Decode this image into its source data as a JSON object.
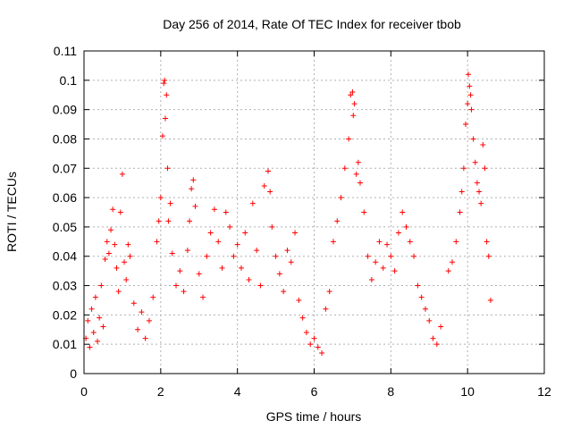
{
  "chart_data": {
    "type": "scatter",
    "title": "Day 256 of 2014, Rate Of TEC Index for receiver tbob",
    "xlabel": "GPS time / hours",
    "ylabel": "ROTI / TECUs",
    "xlim": [
      0,
      12
    ],
    "ylim": [
      0,
      0.11
    ],
    "x_ticks": [
      "0",
      "2",
      "4",
      "6",
      "8",
      "10",
      "12"
    ],
    "y_ticks": [
      "0",
      "0.01",
      "0.02",
      "0.03",
      "0.04",
      "0.05",
      "0.06",
      "0.07",
      "0.08",
      "0.09",
      "0.1",
      "0.11"
    ],
    "grid": true,
    "marker": "+",
    "series": [
      {
        "name": "ROTI",
        "color": "#ff0000",
        "points": [
          [
            0.05,
            0.012
          ],
          [
            0.1,
            0.018
          ],
          [
            0.15,
            0.009
          ],
          [
            0.2,
            0.022
          ],
          [
            0.25,
            0.014
          ],
          [
            0.3,
            0.026
          ],
          [
            0.35,
            0.011
          ],
          [
            0.4,
            0.019
          ],
          [
            0.45,
            0.03
          ],
          [
            0.5,
            0.016
          ],
          [
            0.55,
            0.039
          ],
          [
            0.6,
            0.045
          ],
          [
            0.65,
            0.041
          ],
          [
            0.7,
            0.049
          ],
          [
            0.75,
            0.056
          ],
          [
            0.8,
            0.044
          ],
          [
            0.85,
            0.036
          ],
          [
            0.9,
            0.028
          ],
          [
            0.95,
            0.055
          ],
          [
            1.0,
            0.068
          ],
          [
            1.05,
            0.038
          ],
          [
            1.1,
            0.032
          ],
          [
            1.15,
            0.044
          ],
          [
            1.2,
            0.04
          ],
          [
            1.3,
            0.024
          ],
          [
            1.4,
            0.015
          ],
          [
            1.5,
            0.021
          ],
          [
            1.6,
            0.012
          ],
          [
            1.7,
            0.018
          ],
          [
            1.8,
            0.026
          ],
          [
            1.9,
            0.045
          ],
          [
            1.95,
            0.052
          ],
          [
            2.0,
            0.06
          ],
          [
            2.05,
            0.081
          ],
          [
            2.08,
            0.099
          ],
          [
            2.1,
            0.1
          ],
          [
            2.12,
            0.087
          ],
          [
            2.15,
            0.095
          ],
          [
            2.18,
            0.07
          ],
          [
            2.2,
            0.052
          ],
          [
            2.25,
            0.058
          ],
          [
            2.3,
            0.041
          ],
          [
            2.4,
            0.03
          ],
          [
            2.5,
            0.035
          ],
          [
            2.6,
            0.028
          ],
          [
            2.7,
            0.042
          ],
          [
            2.75,
            0.052
          ],
          [
            2.8,
            0.063
          ],
          [
            2.85,
            0.066
          ],
          [
            2.9,
            0.057
          ],
          [
            3.0,
            0.034
          ],
          [
            3.1,
            0.026
          ],
          [
            3.2,
            0.04
          ],
          [
            3.3,
            0.048
          ],
          [
            3.4,
            0.056
          ],
          [
            3.5,
            0.045
          ],
          [
            3.6,
            0.036
          ],
          [
            3.7,
            0.055
          ],
          [
            3.8,
            0.05
          ],
          [
            3.9,
            0.04
          ],
          [
            4.0,
            0.044
          ],
          [
            4.1,
            0.036
          ],
          [
            4.2,
            0.048
          ],
          [
            4.3,
            0.032
          ],
          [
            4.4,
            0.058
          ],
          [
            4.5,
            0.042
          ],
          [
            4.6,
            0.03
          ],
          [
            4.7,
            0.064
          ],
          [
            4.8,
            0.069
          ],
          [
            4.85,
            0.062
          ],
          [
            4.9,
            0.05
          ],
          [
            5.0,
            0.04
          ],
          [
            5.1,
            0.034
          ],
          [
            5.2,
            0.028
          ],
          [
            5.3,
            0.042
          ],
          [
            5.4,
            0.038
          ],
          [
            5.5,
            0.048
          ],
          [
            5.6,
            0.025
          ],
          [
            5.7,
            0.019
          ],
          [
            5.8,
            0.014
          ],
          [
            5.9,
            0.01
          ],
          [
            6.0,
            0.012
          ],
          [
            6.1,
            0.009
          ],
          [
            6.2,
            0.007
          ],
          [
            6.3,
            0.022
          ],
          [
            6.4,
            0.028
          ],
          [
            6.5,
            0.045
          ],
          [
            6.6,
            0.052
          ],
          [
            6.7,
            0.06
          ],
          [
            6.8,
            0.07
          ],
          [
            6.9,
            0.08
          ],
          [
            6.95,
            0.095
          ],
          [
            7.0,
            0.096
          ],
          [
            7.02,
            0.088
          ],
          [
            7.05,
            0.092
          ],
          [
            7.1,
            0.068
          ],
          [
            7.15,
            0.072
          ],
          [
            7.2,
            0.065
          ],
          [
            7.3,
            0.055
          ],
          [
            7.4,
            0.04
          ],
          [
            7.5,
            0.032
          ],
          [
            7.6,
            0.038
          ],
          [
            7.7,
            0.045
          ],
          [
            7.8,
            0.036
          ],
          [
            7.9,
            0.044
          ],
          [
            8.0,
            0.04
          ],
          [
            8.1,
            0.035
          ],
          [
            8.2,
            0.048
          ],
          [
            8.3,
            0.055
          ],
          [
            8.4,
            0.05
          ],
          [
            8.5,
            0.045
          ],
          [
            8.6,
            0.04
          ],
          [
            8.7,
            0.03
          ],
          [
            8.8,
            0.026
          ],
          [
            8.9,
            0.022
          ],
          [
            9.0,
            0.018
          ],
          [
            9.1,
            0.012
          ],
          [
            9.2,
            0.01
          ],
          [
            9.3,
            0.016
          ],
          [
            9.5,
            0.035
          ],
          [
            9.6,
            0.038
          ],
          [
            9.7,
            0.045
          ],
          [
            9.8,
            0.055
          ],
          [
            9.85,
            0.062
          ],
          [
            9.9,
            0.07
          ],
          [
            9.95,
            0.085
          ],
          [
            10.0,
            0.092
          ],
          [
            10.02,
            0.102
          ],
          [
            10.05,
            0.098
          ],
          [
            10.08,
            0.095
          ],
          [
            10.1,
            0.09
          ],
          [
            10.15,
            0.08
          ],
          [
            10.2,
            0.072
          ],
          [
            10.25,
            0.065
          ],
          [
            10.3,
            0.062
          ],
          [
            10.35,
            0.058
          ],
          [
            10.4,
            0.078
          ],
          [
            10.45,
            0.07
          ],
          [
            10.5,
            0.045
          ],
          [
            10.55,
            0.04
          ],
          [
            10.6,
            0.025
          ]
        ]
      }
    ]
  }
}
